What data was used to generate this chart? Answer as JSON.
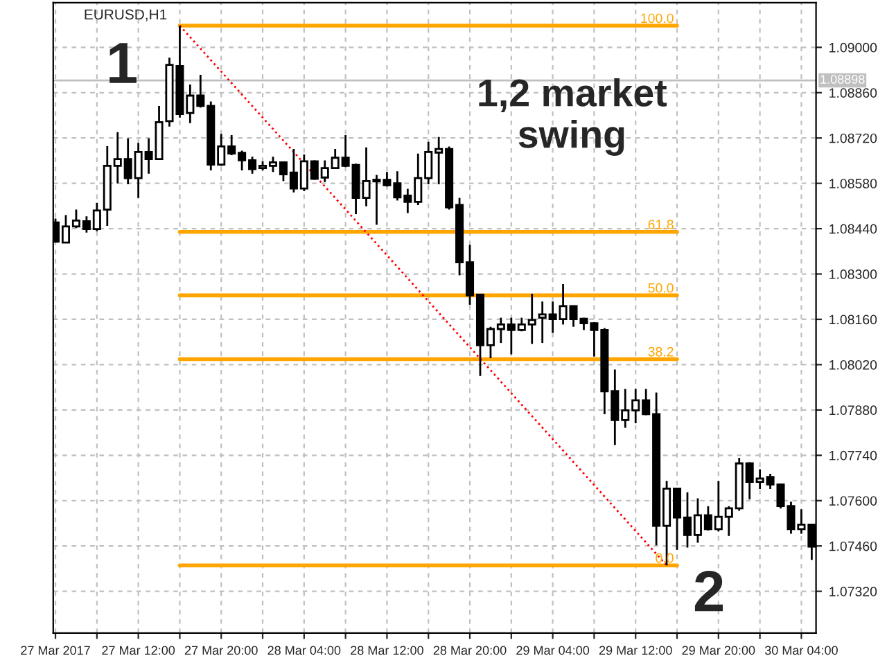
{
  "chart_data": {
    "type": "candlestick",
    "title": "EURUSD,H1",
    "color": "#000000",
    "x": [
      "2017-03-27T04:00",
      "2017-03-27T05:00",
      "2017-03-27T06:00",
      "2017-03-27T07:00",
      "2017-03-27T08:00",
      "2017-03-27T09:00",
      "2017-03-27T10:00",
      "2017-03-27T11:00",
      "2017-03-27T12:00",
      "2017-03-27T13:00",
      "2017-03-27T14:00",
      "2017-03-27T15:00",
      "2017-03-27T16:00",
      "2017-03-27T17:00",
      "2017-03-27T18:00",
      "2017-03-27T19:00",
      "2017-03-27T20:00",
      "2017-03-27T21:00",
      "2017-03-27T22:00",
      "2017-03-27T23:00",
      "2017-03-28T00:00",
      "2017-03-28T01:00",
      "2017-03-28T02:00",
      "2017-03-28T03:00",
      "2017-03-28T04:00",
      "2017-03-28T05:00",
      "2017-03-28T06:00",
      "2017-03-28T07:00",
      "2017-03-28T08:00",
      "2017-03-28T09:00",
      "2017-03-28T10:00",
      "2017-03-28T11:00",
      "2017-03-28T12:00",
      "2017-03-28T13:00",
      "2017-03-28T14:00",
      "2017-03-28T15:00",
      "2017-03-28T16:00",
      "2017-03-28T17:00",
      "2017-03-28T18:00",
      "2017-03-28T19:00",
      "2017-03-28T20:00",
      "2017-03-28T21:00",
      "2017-03-28T22:00",
      "2017-03-28T23:00",
      "2017-03-29T00:00",
      "2017-03-29T01:00",
      "2017-03-29T02:00",
      "2017-03-29T03:00",
      "2017-03-29T04:00",
      "2017-03-29T05:00",
      "2017-03-29T06:00",
      "2017-03-29T07:00",
      "2017-03-29T08:00",
      "2017-03-29T09:00",
      "2017-03-29T10:00",
      "2017-03-29T11:00",
      "2017-03-29T12:00",
      "2017-03-29T13:00",
      "2017-03-29T14:00",
      "2017-03-29T15:00",
      "2017-03-29T16:00",
      "2017-03-29T17:00",
      "2017-03-29T18:00",
      "2017-03-29T19:00",
      "2017-03-29T20:00",
      "2017-03-29T21:00",
      "2017-03-29T22:00",
      "2017-03-29T23:00",
      "2017-03-30T00:00",
      "2017-03-30T01:00",
      "2017-03-30T02:00",
      "2017-03-30T03:00",
      "2017-03-30T04:00",
      "2017-03-30T05:00"
    ],
    "ohlc": [
      [
        1.08459,
        1.08471,
        1.08397,
        1.084
      ],
      [
        1.08397,
        1.08482,
        1.08397,
        1.08447
      ],
      [
        1.08447,
        1.08499,
        1.08442,
        1.08465
      ],
      [
        1.08463,
        1.08478,
        1.08428,
        1.08439
      ],
      [
        1.08439,
        1.0852,
        1.08432,
        1.08496
      ],
      [
        1.08499,
        1.08695,
        1.08449,
        1.08634
      ],
      [
        1.08634,
        1.08738,
        1.0858,
        1.08655
      ],
      [
        1.08655,
        1.08719,
        1.08577,
        1.08596
      ],
      [
        1.08596,
        1.08705,
        1.08535,
        1.08677
      ],
      [
        1.08677,
        1.08719,
        1.0861,
        1.08655
      ],
      [
        1.08655,
        1.08819,
        1.08655,
        1.08769
      ],
      [
        1.08772,
        1.08968,
        1.08755,
        1.08946
      ],
      [
        1.08942,
        1.09067,
        1.08783,
        1.08794
      ],
      [
        1.08797,
        1.08885,
        1.08766,
        1.08851
      ],
      [
        1.08851,
        1.08915,
        1.08814,
        1.08819
      ],
      [
        1.08819,
        1.08833,
        1.0862,
        1.08638
      ],
      [
        1.08638,
        1.08733,
        1.08634,
        1.08694
      ],
      [
        1.08694,
        1.08729,
        1.08667,
        1.08672
      ],
      [
        1.08674,
        1.08681,
        1.0862,
        1.08651
      ],
      [
        1.08651,
        1.08662,
        1.0861,
        1.08624
      ],
      [
        1.08627,
        1.08648,
        1.0862,
        1.08634
      ],
      [
        1.08634,
        1.08662,
        1.08615,
        1.08645
      ],
      [
        1.08645,
        1.08648,
        1.08587,
        1.08608
      ],
      [
        1.08613,
        1.08686,
        1.08552,
        1.08564
      ],
      [
        1.08564,
        1.08669,
        1.08556,
        1.08648
      ],
      [
        1.08648,
        1.08651,
        1.08591,
        1.08594
      ],
      [
        1.08598,
        1.08651,
        1.08584,
        1.08627
      ],
      [
        1.08627,
        1.08686,
        1.08624,
        1.08659
      ],
      [
        1.08659,
        1.08729,
        1.0863,
        1.08634
      ],
      [
        1.08637,
        1.08641,
        1.08485,
        1.08535
      ],
      [
        1.08535,
        1.08691,
        1.08509,
        1.08587
      ],
      [
        1.08591,
        1.08606,
        1.08452,
        1.08586
      ],
      [
        1.08591,
        1.08615,
        1.0857,
        1.08574
      ],
      [
        1.0858,
        1.08617,
        1.08527,
        1.08537
      ],
      [
        1.08542,
        1.08563,
        1.08488,
        1.08523
      ],
      [
        1.08523,
        1.08672,
        1.08513,
        1.08596
      ],
      [
        1.08596,
        1.08708,
        1.08577,
        1.08677
      ],
      [
        1.08675,
        1.08723,
        1.08577,
        1.08686
      ],
      [
        1.08686,
        1.08694,
        1.08499,
        1.08506
      ],
      [
        1.08513,
        1.08535,
        1.08296,
        1.08336
      ],
      [
        1.08336,
        1.0839,
        1.08205,
        1.08234
      ],
      [
        1.08236,
        1.08239,
        1.07985,
        1.0808
      ],
      [
        1.0808,
        1.08137,
        1.0804,
        1.0813
      ],
      [
        1.0813,
        1.08165,
        1.08087,
        1.08144
      ],
      [
        1.08144,
        1.08165,
        1.08052,
        1.08127
      ],
      [
        1.08127,
        1.08165,
        1.08123,
        1.08144
      ],
      [
        1.08144,
        1.08239,
        1.08084,
        1.08158
      ],
      [
        1.08165,
        1.08215,
        1.08087,
        1.08175
      ],
      [
        1.08175,
        1.08215,
        1.08118,
        1.08161
      ],
      [
        1.08161,
        1.08269,
        1.08144,
        1.08201
      ],
      [
        1.08201,
        1.08201,
        1.08137,
        1.08161
      ],
      [
        1.08162,
        1.08165,
        1.08127,
        1.08148
      ],
      [
        1.08148,
        1.08151,
        1.08045,
        1.08127
      ],
      [
        1.08127,
        1.08133,
        1.07867,
        1.07938
      ],
      [
        1.07938,
        1.08005,
        1.07772,
        1.07849
      ],
      [
        1.07849,
        1.07945,
        1.07825,
        1.07879
      ],
      [
        1.07879,
        1.07945,
        1.07839,
        1.0791
      ],
      [
        1.0791,
        1.07945,
        1.07864,
        1.07867
      ],
      [
        1.07867,
        1.07934,
        1.07462,
        1.07522
      ],
      [
        1.07522,
        1.07661,
        1.074,
        1.07637
      ],
      [
        1.07637,
        1.07637,
        1.07448,
        1.07548
      ],
      [
        1.07548,
        1.07626,
        1.07455,
        1.07494
      ],
      [
        1.07494,
        1.07607,
        1.0747,
        1.07555
      ],
      [
        1.07555,
        1.07583,
        1.07508,
        1.07512
      ],
      [
        1.07512,
        1.07661,
        1.07505,
        1.0755
      ],
      [
        1.0755,
        1.07583,
        1.07491,
        1.07576
      ],
      [
        1.07576,
        1.07732,
        1.07569,
        1.07715
      ],
      [
        1.07715,
        1.07718,
        1.07604,
        1.07658
      ],
      [
        1.07658,
        1.07697,
        1.07636,
        1.07668
      ],
      [
        1.07673,
        1.07683,
        1.07636,
        1.0765
      ],
      [
        1.0765,
        1.0765,
        1.07576,
        1.07583
      ],
      [
        1.07583,
        1.07597,
        1.07498,
        1.07512
      ],
      [
        1.07512,
        1.07573,
        1.07498,
        1.07526
      ],
      [
        1.07526,
        1.07526,
        1.07417,
        1.07458
      ]
    ],
    "series": [
      {
        "type": "line",
        "name": "100.0",
        "color": "#ffa500",
        "x": [
          "2017-03-27T16:00",
          "2017-03-29T16:00"
        ],
        "values": [
          1.09067,
          1.09067
        ]
      },
      {
        "type": "line",
        "name": "61.8",
        "color": "#ffa500",
        "x": [
          "2017-03-27T16:00",
          "2017-03-29T16:00"
        ],
        "values": [
          1.0843,
          1.0843
        ]
      },
      {
        "type": "line",
        "name": "50.0",
        "color": "#ffa500",
        "x": [
          "2017-03-27T16:00",
          "2017-03-29T16:00"
        ],
        "values": [
          1.08234,
          1.08234
        ]
      },
      {
        "type": "line",
        "name": "38.2",
        "color": "#ffa500",
        "x": [
          "2017-03-27T16:00",
          "2017-03-29T16:00"
        ],
        "values": [
          1.08037,
          1.08037
        ]
      },
      {
        "type": "line",
        "name": "0.0",
        "color": "#ffa500",
        "x": [
          "2017-03-27T16:00",
          "2017-03-29T16:00"
        ],
        "values": [
          1.074,
          1.074
        ]
      },
      {
        "type": "line",
        "color": "#ff0000",
        "line_style": "dotted",
        "x": [
          "2017-03-27T16:00",
          "2017-03-29T15:00"
        ],
        "values": [
          1.09067,
          1.074
        ]
      }
    ],
    "ref_lines": [
      {
        "axis": "y",
        "value": 1.08898,
        "label": "1.08898",
        "color": "#c0c0c0"
      }
    ],
    "annotations": [
      {
        "text": "1",
        "x": "2017-03-27T16:00",
        "y": 1.09067
      },
      {
        "text": "2",
        "x": "2017-03-29T15:00",
        "y": 1.074
      },
      "1,2 market swing"
    ],
    "xlim": [
      "2017-03-27T03:47",
      "2017-03-30T05:25"
    ],
    "xticks": [
      {
        "value": "2017-03-27T04:00",
        "label": "27 Mar 2017"
      },
      {
        "value": "2017-03-27T08:00",
        "label": null
      },
      {
        "value": "2017-03-27T12:00",
        "label": "27 Mar 12:00"
      },
      {
        "value": "2017-03-27T16:00",
        "label": null
      },
      {
        "value": "2017-03-27T20:00",
        "label": "27 Mar 20:00"
      },
      {
        "value": "2017-03-28T00:00",
        "label": null
      },
      {
        "value": "2017-03-28T04:00",
        "label": "28 Mar 04:00"
      },
      {
        "value": "2017-03-28T08:00",
        "label": null
      },
      {
        "value": "2017-03-28T12:00",
        "label": "28 Mar 12:00"
      },
      {
        "value": "2017-03-28T16:00",
        "label": null
      },
      {
        "value": "2017-03-28T20:00",
        "label": "28 Mar 20:00"
      },
      {
        "value": "2017-03-29T00:00",
        "label": null
      },
      {
        "value": "2017-03-29T04:00",
        "label": "29 Mar 04:00"
      },
      {
        "value": "2017-03-29T08:00",
        "label": null
      },
      {
        "value": "2017-03-29T12:00",
        "label": "29 Mar 12:00"
      },
      {
        "value": "2017-03-29T16:00",
        "label": null
      },
      {
        "value": "2017-03-29T20:00",
        "label": "29 Mar 20:00"
      },
      {
        "value": "2017-03-30T00:00",
        "label": null
      },
      {
        "value": "2017-03-30T04:00",
        "label": "30 Mar 04:00"
      }
    ],
    "ylim": [
      1.07191,
      1.09138
    ],
    "yticks": [
      {
        "value": 1.09,
        "label": "1.09000"
      },
      {
        "value": 1.0886,
        "label": "1.08860"
      },
      {
        "value": 1.0872,
        "label": "1.08720"
      },
      {
        "value": 1.0858,
        "label": "1.08580"
      },
      {
        "value": 1.0844,
        "label": "1.08440"
      },
      {
        "value": 1.083,
        "label": "1.08300"
      },
      {
        "value": 1.0816,
        "label": "1.08160"
      },
      {
        "value": 1.0802,
        "label": "1.08020"
      },
      {
        "value": 1.0788,
        "label": "1.07880"
      },
      {
        "value": 1.0774,
        "label": "1.07740"
      },
      {
        "value": 1.076,
        "label": "1.07600"
      },
      {
        "value": 1.0746,
        "label": "1.07460"
      },
      {
        "value": 1.0732,
        "label": "1.07320"
      }
    ],
    "grid": true
  }
}
